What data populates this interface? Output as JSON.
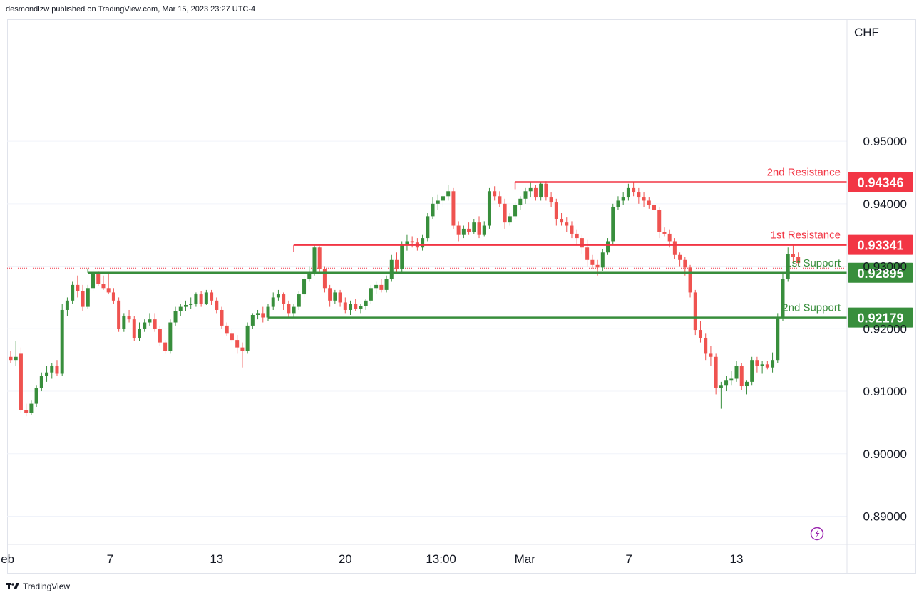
{
  "header": {
    "published": "desmondlzw published on TradingView.com, Mar 15, 2023 23:27 UTC-4"
  },
  "footer": {
    "brand": "TradingView"
  },
  "colors": {
    "up": "#388e3c",
    "down": "#ef5350",
    "resistance": "#f23645",
    "support": "#388e3c",
    "grid": "#f0f3fa",
    "axis_text": "#131722",
    "current_price_line": "#f23645",
    "lightning": "#9c27b0"
  },
  "icons": [
    "tradingview-logo-icon",
    "lightning-icon"
  ],
  "chart_data": {
    "type": "candlestick",
    "currency_label": "CHF",
    "ylim": [
      0.8855,
      0.9695
    ],
    "y_ticks": [
      "0.95000",
      "0.94000",
      "0.93000",
      "0.92000",
      "0.91000",
      "0.90000",
      "0.89000"
    ],
    "x_ticks": [
      "eb",
      "7",
      "13",
      "20",
      "13:00",
      "Mar",
      "7",
      "13"
    ],
    "current_price": 0.9297,
    "levels": [
      {
        "name": "2nd Resistance",
        "value": "0.94346",
        "type": "resistance"
      },
      {
        "name": "1st Resistance",
        "value": "0.93341",
        "type": "resistance"
      },
      {
        "name": "1st Support",
        "value": "0.92895",
        "type": "support"
      },
      {
        "name": "2nd Support",
        "value": "0.92179",
        "type": "support"
      }
    ],
    "level_start_candle": [
      98,
      55,
      15,
      50
    ],
    "candles": [
      [
        0.9155,
        0.9165,
        0.9145,
        0.915
      ],
      [
        0.915,
        0.918,
        0.914,
        0.9155
      ],
      [
        0.916,
        0.917,
        0.9065,
        0.907
      ],
      [
        0.907,
        0.908,
        0.906,
        0.9065
      ],
      [
        0.9065,
        0.9085,
        0.9062,
        0.908
      ],
      [
        0.908,
        0.911,
        0.9075,
        0.9105
      ],
      [
        0.9105,
        0.913,
        0.91,
        0.9125
      ],
      [
        0.9125,
        0.914,
        0.9115,
        0.913
      ],
      [
        0.913,
        0.9145,
        0.912,
        0.914
      ],
      [
        0.914,
        0.915,
        0.9125,
        0.9128
      ],
      [
        0.9128,
        0.924,
        0.9125,
        0.923
      ],
      [
        0.923,
        0.925,
        0.922,
        0.9245
      ],
      [
        0.9245,
        0.9275,
        0.924,
        0.927
      ],
      [
        0.927,
        0.9285,
        0.925,
        0.926
      ],
      [
        0.926,
        0.927,
        0.9228,
        0.9235
      ],
      [
        0.9235,
        0.927,
        0.9232,
        0.9265
      ],
      [
        0.9265,
        0.9295,
        0.926,
        0.929
      ],
      [
        0.929,
        0.9292,
        0.9268,
        0.9272
      ],
      [
        0.9272,
        0.9285,
        0.9262,
        0.9265
      ],
      [
        0.9265,
        0.929,
        0.9255,
        0.9258
      ],
      [
        0.9258,
        0.9265,
        0.924,
        0.9245
      ],
      [
        0.9245,
        0.925,
        0.9195,
        0.92
      ],
      [
        0.92,
        0.9225,
        0.9195,
        0.922
      ],
      [
        0.922,
        0.923,
        0.921,
        0.9215
      ],
      [
        0.9215,
        0.922,
        0.918,
        0.9185
      ],
      [
        0.9185,
        0.921,
        0.918,
        0.92
      ],
      [
        0.92,
        0.9215,
        0.9195,
        0.921
      ],
      [
        0.921,
        0.9225,
        0.9205,
        0.9215
      ],
      [
        0.9215,
        0.9225,
        0.9195,
        0.92
      ],
      [
        0.92,
        0.9205,
        0.9172,
        0.9178
      ],
      [
        0.9178,
        0.9182,
        0.916,
        0.9165
      ],
      [
        0.9165,
        0.9215,
        0.916,
        0.921
      ],
      [
        0.921,
        0.9235,
        0.9205,
        0.9228
      ],
      [
        0.9228,
        0.924,
        0.922,
        0.9235
      ],
      [
        0.9235,
        0.9245,
        0.9228,
        0.9238
      ],
      [
        0.9238,
        0.925,
        0.9232,
        0.924
      ],
      [
        0.924,
        0.9258,
        0.9235,
        0.9255
      ],
      [
        0.9255,
        0.926,
        0.9235,
        0.924
      ],
      [
        0.924,
        0.9262,
        0.9238,
        0.9258
      ],
      [
        0.9258,
        0.9262,
        0.9238,
        0.9245
      ],
      [
        0.9245,
        0.925,
        0.9225,
        0.923
      ],
      [
        0.923,
        0.9235,
        0.92,
        0.9205
      ],
      [
        0.9205,
        0.921,
        0.9188,
        0.9192
      ],
      [
        0.9192,
        0.92,
        0.9178,
        0.9182
      ],
      [
        0.9182,
        0.919,
        0.916,
        0.917
      ],
      [
        0.917,
        0.9178,
        0.9138,
        0.9165
      ],
      [
        0.9165,
        0.921,
        0.916,
        0.9205
      ],
      [
        0.9205,
        0.9225,
        0.92,
        0.9222
      ],
      [
        0.9222,
        0.923,
        0.9215,
        0.9225
      ],
      [
        0.9225,
        0.9235,
        0.921,
        0.9218
      ],
      [
        0.9218,
        0.924,
        0.9212,
        0.9235
      ],
      [
        0.9235,
        0.9258,
        0.923,
        0.925
      ],
      [
        0.925,
        0.9262,
        0.9245,
        0.9255
      ],
      [
        0.9255,
        0.9258,
        0.923,
        0.924
      ],
      [
        0.924,
        0.9245,
        0.9218,
        0.9225
      ],
      [
        0.9225,
        0.924,
        0.9218,
        0.9235
      ],
      [
        0.9235,
        0.926,
        0.923,
        0.9255
      ],
      [
        0.9255,
        0.9285,
        0.925,
        0.928
      ],
      [
        0.928,
        0.93,
        0.9275,
        0.929
      ],
      [
        0.929,
        0.9335,
        0.9285,
        0.933
      ],
      [
        0.933,
        0.9332,
        0.9288,
        0.9295
      ],
      [
        0.9295,
        0.93,
        0.9258,
        0.9265
      ],
      [
        0.9265,
        0.927,
        0.9235,
        0.9245
      ],
      [
        0.9245,
        0.9262,
        0.924,
        0.9258
      ],
      [
        0.9258,
        0.9262,
        0.9235,
        0.9242
      ],
      [
        0.9242,
        0.925,
        0.9225,
        0.923
      ],
      [
        0.923,
        0.9245,
        0.9222,
        0.924
      ],
      [
        0.924,
        0.9248,
        0.9228,
        0.9232
      ],
      [
        0.9232,
        0.924,
        0.9225,
        0.9236
      ],
      [
        0.9236,
        0.9248,
        0.923,
        0.9245
      ],
      [
        0.9245,
        0.927,
        0.924,
        0.9265
      ],
      [
        0.9265,
        0.9275,
        0.9255,
        0.927
      ],
      [
        0.927,
        0.928,
        0.9258,
        0.9262
      ],
      [
        0.9262,
        0.9285,
        0.9258,
        0.928
      ],
      [
        0.928,
        0.9318,
        0.9275,
        0.931
      ],
      [
        0.931,
        0.9322,
        0.9288,
        0.9295
      ],
      [
        0.9295,
        0.934,
        0.929,
        0.9335
      ],
      [
        0.9335,
        0.935,
        0.9325,
        0.934
      ],
      [
        0.934,
        0.9348,
        0.933,
        0.9338
      ],
      [
        0.9338,
        0.9345,
        0.9325,
        0.933
      ],
      [
        0.933,
        0.935,
        0.9325,
        0.9345
      ],
      [
        0.9345,
        0.9385,
        0.934,
        0.938
      ],
      [
        0.938,
        0.941,
        0.9375,
        0.94
      ],
      [
        0.94,
        0.9415,
        0.939,
        0.9405
      ],
      [
        0.9405,
        0.9415,
        0.9395,
        0.9412
      ],
      [
        0.9412,
        0.943,
        0.9405,
        0.942
      ],
      [
        0.942,
        0.9425,
        0.936,
        0.9365
      ],
      [
        0.9365,
        0.9372,
        0.934,
        0.935
      ],
      [
        0.935,
        0.9365,
        0.9345,
        0.936
      ],
      [
        0.936,
        0.937,
        0.935,
        0.9355
      ],
      [
        0.9355,
        0.9375,
        0.9352,
        0.937
      ],
      [
        0.937,
        0.938,
        0.9345,
        0.935
      ],
      [
        0.935,
        0.9372,
        0.9348,
        0.9365
      ],
      [
        0.9365,
        0.9425,
        0.936,
        0.942
      ],
      [
        0.942,
        0.9428,
        0.9405,
        0.9412
      ],
      [
        0.9412,
        0.942,
        0.9395,
        0.94
      ],
      [
        0.94,
        0.9408,
        0.936,
        0.937
      ],
      [
        0.937,
        0.9385,
        0.9365,
        0.938
      ],
      [
        0.938,
        0.9402,
        0.9375,
        0.9398
      ],
      [
        0.9398,
        0.9412,
        0.939,
        0.9408
      ],
      [
        0.9408,
        0.9425,
        0.94,
        0.942
      ],
      [
        0.942,
        0.9435,
        0.941,
        0.9425
      ],
      [
        0.9425,
        0.943,
        0.9405,
        0.941
      ],
      [
        0.941,
        0.9435,
        0.9405,
        0.9432
      ],
      [
        0.9432,
        0.9436,
        0.9405,
        0.941
      ],
      [
        0.941,
        0.9418,
        0.9395,
        0.9402
      ],
      [
        0.9402,
        0.9408,
        0.9365,
        0.9375
      ],
      [
        0.9375,
        0.9385,
        0.9365,
        0.937
      ],
      [
        0.937,
        0.9378,
        0.9355,
        0.9365
      ],
      [
        0.9365,
        0.9372,
        0.9345,
        0.9352
      ],
      [
        0.9352,
        0.9358,
        0.9335,
        0.9345
      ],
      [
        0.9345,
        0.935,
        0.932,
        0.933
      ],
      [
        0.933,
        0.9342,
        0.93,
        0.931
      ],
      [
        0.931,
        0.9318,
        0.9295,
        0.9302
      ],
      [
        0.9302,
        0.931,
        0.9285,
        0.9298
      ],
      [
        0.9298,
        0.9328,
        0.9292,
        0.9322
      ],
      [
        0.9322,
        0.9345,
        0.9318,
        0.934
      ],
      [
        0.934,
        0.94,
        0.9335,
        0.9395
      ],
      [
        0.9395,
        0.9412,
        0.939,
        0.9405
      ],
      [
        0.9405,
        0.9418,
        0.9398,
        0.941
      ],
      [
        0.941,
        0.9432,
        0.9405,
        0.9425
      ],
      [
        0.9425,
        0.9435,
        0.9412,
        0.9418
      ],
      [
        0.9418,
        0.9425,
        0.94,
        0.941
      ],
      [
        0.941,
        0.9418,
        0.9395,
        0.9405
      ],
      [
        0.9405,
        0.941,
        0.9392,
        0.9398
      ],
      [
        0.9398,
        0.9402,
        0.9385,
        0.939
      ],
      [
        0.939,
        0.9395,
        0.9345,
        0.9355
      ],
      [
        0.9355,
        0.9362,
        0.9348,
        0.9352
      ],
      [
        0.9352,
        0.9358,
        0.933,
        0.934
      ],
      [
        0.934,
        0.9345,
        0.9312,
        0.9318
      ],
      [
        0.9318,
        0.9322,
        0.93,
        0.931
      ],
      [
        0.931,
        0.9315,
        0.9285,
        0.9298
      ],
      [
        0.9298,
        0.9302,
        0.925,
        0.9258
      ],
      [
        0.9258,
        0.9262,
        0.919,
        0.9198
      ],
      [
        0.9198,
        0.9212,
        0.9178,
        0.9185
      ],
      [
        0.9185,
        0.9192,
        0.915,
        0.916
      ],
      [
        0.916,
        0.9172,
        0.914,
        0.9155
      ],
      [
        0.9155,
        0.916,
        0.9095,
        0.9105
      ],
      [
        0.9105,
        0.9115,
        0.9072,
        0.911
      ],
      [
        0.911,
        0.9125,
        0.91,
        0.9118
      ],
      [
        0.9118,
        0.9132,
        0.911,
        0.912
      ],
      [
        0.912,
        0.9148,
        0.9115,
        0.914
      ],
      [
        0.914,
        0.9145,
        0.9102,
        0.9108
      ],
      [
        0.9108,
        0.9118,
        0.9095,
        0.9115
      ],
      [
        0.9115,
        0.9155,
        0.911,
        0.915
      ],
      [
        0.915,
        0.9155,
        0.913,
        0.914
      ],
      [
        0.914,
        0.9148,
        0.9128,
        0.9143
      ],
      [
        0.9143,
        0.9148,
        0.9135,
        0.9138
      ],
      [
        0.9138,
        0.9162,
        0.913,
        0.915
      ],
      [
        0.915,
        0.9225,
        0.9145,
        0.9218
      ],
      [
        0.9218,
        0.929,
        0.9212,
        0.928
      ],
      [
        0.928,
        0.933,
        0.9275,
        0.932
      ],
      [
        0.932,
        0.9335,
        0.9305,
        0.9315
      ],
      [
        0.9315,
        0.9322,
        0.93,
        0.9305
      ]
    ]
  }
}
